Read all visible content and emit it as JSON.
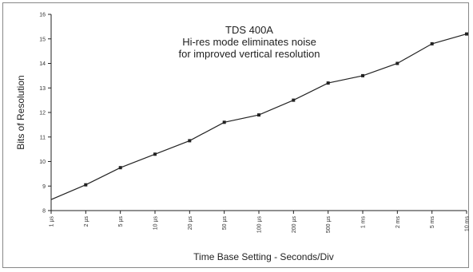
{
  "chart_data": {
    "type": "line",
    "title": "TDS 400A",
    "subtitle_lines": [
      "Hi-res mode eliminates noise",
      "for improved vertical resolution"
    ],
    "xlabel": "Time Base Setting - Seconds/Div",
    "ylabel": "Bits of Resolution",
    "categories": [
      "1 µs",
      "2 µs",
      "5 µs",
      "10 µs",
      "20 µs",
      "50 µs",
      "100 µs",
      "200 µs",
      "500 µs",
      "1 ms",
      "2 ms",
      "5 ms",
      "10 ms"
    ],
    "values": [
      8.45,
      9.05,
      9.75,
      10.3,
      10.85,
      11.6,
      11.9,
      12.5,
      13.2,
      13.5,
      14.0,
      14.8,
      15.2
    ],
    "ylim": [
      8,
      16
    ],
    "yticks": [
      8,
      9,
      10,
      11,
      12,
      13,
      14,
      15,
      16
    ],
    "grid": false,
    "line_color": "#222222"
  }
}
